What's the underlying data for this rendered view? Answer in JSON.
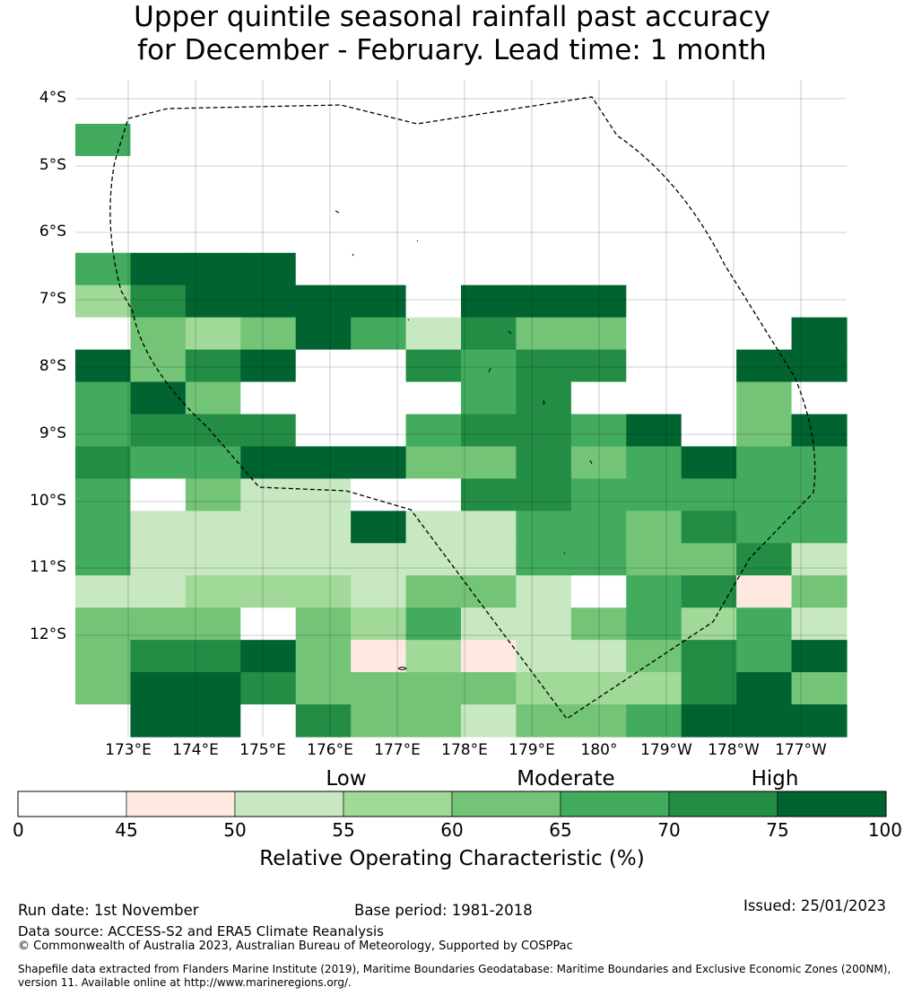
{
  "title": {
    "line1": "Upper quintile seasonal rainfall past accuracy",
    "line2": "for December - February. Lead time: 1 month"
  },
  "map": {
    "lat_labels": [
      "4°S",
      "5°S",
      "6°S",
      "7°S",
      "8°S",
      "9°S",
      "10°S",
      "11°S",
      "12°S"
    ],
    "lon_labels": [
      "173°E",
      "174°E",
      "175°E",
      "176°E",
      "177°E",
      "178°E",
      "179°E",
      "180°",
      "179°W",
      "178°W",
      "177°W"
    ],
    "grid": [
      "99999999999999",
      "99999999999999",
      "69999999999999",
      "99999999999999",
      "99999999999999",
      "99999999999999",
      "68889999999999",
      "47888898889999",
      "15458637559998",
      "85789976779988",
      "68599996799959",
      "67779967768958",
      "76688855756866",
      "60533997766666",
      "63333833665766",
      "63333333665573",
      "33444355306725",
      "55595463356463",
      "57785242335768",
      "58875555444785",
      "98897553556888"
    ],
    "legend_colors": [
      "#ffffff",
      "#fee9e0",
      "#c8e8c1",
      "#a1d998",
      "#73c476",
      "#42ab5d",
      "#238c45",
      "#006330"
    ],
    "legend_ticks": [
      "0",
      "45",
      "50",
      "55",
      "60",
      "65",
      "70",
      "75",
      "100"
    ],
    "categories": [
      "Low",
      "Moderate",
      "High"
    ],
    "colorbar_label": "Relative Operating Characteristic (%)"
  },
  "footer": {
    "run_date": "Run date: 1st November",
    "base_period": "Base period: 1981-2018",
    "issued": "Issued: 25/01/2023",
    "data_source": "Data source: ACCESS-S2 and ERA5 Climate Reanalysis",
    "copyright": "© Commonwealth of Australia 2023, Australian Bureau of Meteorology, Supported by COSPPac",
    "shapefile_line1": "Shapefile data extracted from Flanders Marine Institute (2019), Maritime Boundaries Geodatabase: Maritime Boundaries and Exclusive Economic Zones (200NM),",
    "shapefile_line2": "version 11. Available online at http://www.marineregions.org/."
  }
}
